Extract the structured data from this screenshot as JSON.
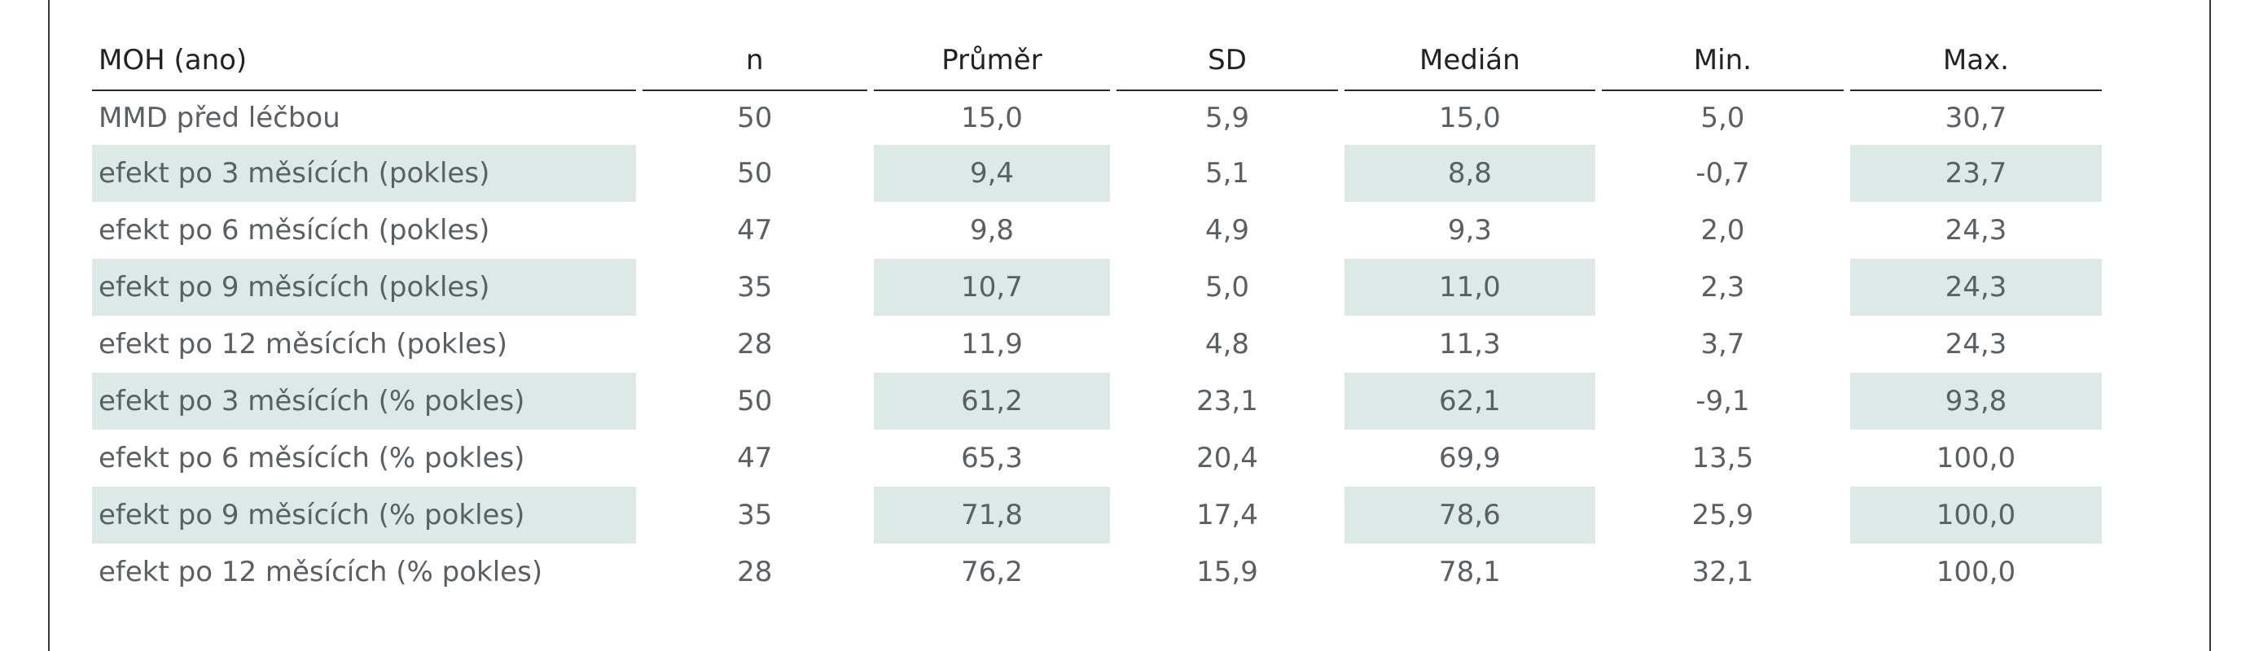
{
  "table": {
    "headers": [
      "MOH (ano)",
      "n",
      "Průměr",
      "SD",
      "Medián",
      "Min.",
      "Max."
    ],
    "rows": [
      {
        "label": "MMD před léčbou",
        "values": [
          "50",
          "15,0",
          "5,9",
          "15,0",
          "5,0",
          "30,7"
        ],
        "shaded": false
      },
      {
        "label": "efekt po 3 měsících (pokles)",
        "values": [
          "50",
          "9,4",
          "5,1",
          "8,8",
          "-0,7",
          "23,7"
        ],
        "shaded": true
      },
      {
        "label": "efekt po 6 měsících (pokles)",
        "values": [
          "47",
          "9,8",
          "4,9",
          "9,3",
          "2,0",
          "24,3"
        ],
        "shaded": false
      },
      {
        "label": "efekt po 9 měsících (pokles)",
        "values": [
          "35",
          "10,7",
          "5,0",
          "11,0",
          "2,3",
          "24,3"
        ],
        "shaded": true
      },
      {
        "label": "efekt po 12 měsících (pokles)",
        "values": [
          "28",
          "11,9",
          "4,8",
          "11,3",
          "3,7",
          "24,3"
        ],
        "shaded": false
      },
      {
        "label": "efekt po 3 měsících (% pokles)",
        "values": [
          "50",
          "61,2",
          "23,1",
          "62,1",
          "-9,1",
          "93,8"
        ],
        "shaded": true
      },
      {
        "label": "efekt po 6 měsících (% pokles)",
        "values": [
          "47",
          "65,3",
          "20,4",
          "69,9",
          "13,5",
          "100,0"
        ],
        "shaded": false
      },
      {
        "label": "efekt po 9 měsících (% pokles)",
        "values": [
          "35",
          "71,8",
          "17,4",
          "78,6",
          "25,9",
          "100,0"
        ],
        "shaded": true
      },
      {
        "label": "efekt po 12 měsících (% pokles)",
        "values": [
          "28",
          "76,2",
          "15,9",
          "78,1",
          "32,1",
          "100,0"
        ],
        "shaded": false
      }
    ]
  },
  "colors": {
    "row_shade": "#dde9e6",
    "text": "#5a5f64",
    "header_text": "#222222",
    "rule": "#2a2a2a"
  }
}
